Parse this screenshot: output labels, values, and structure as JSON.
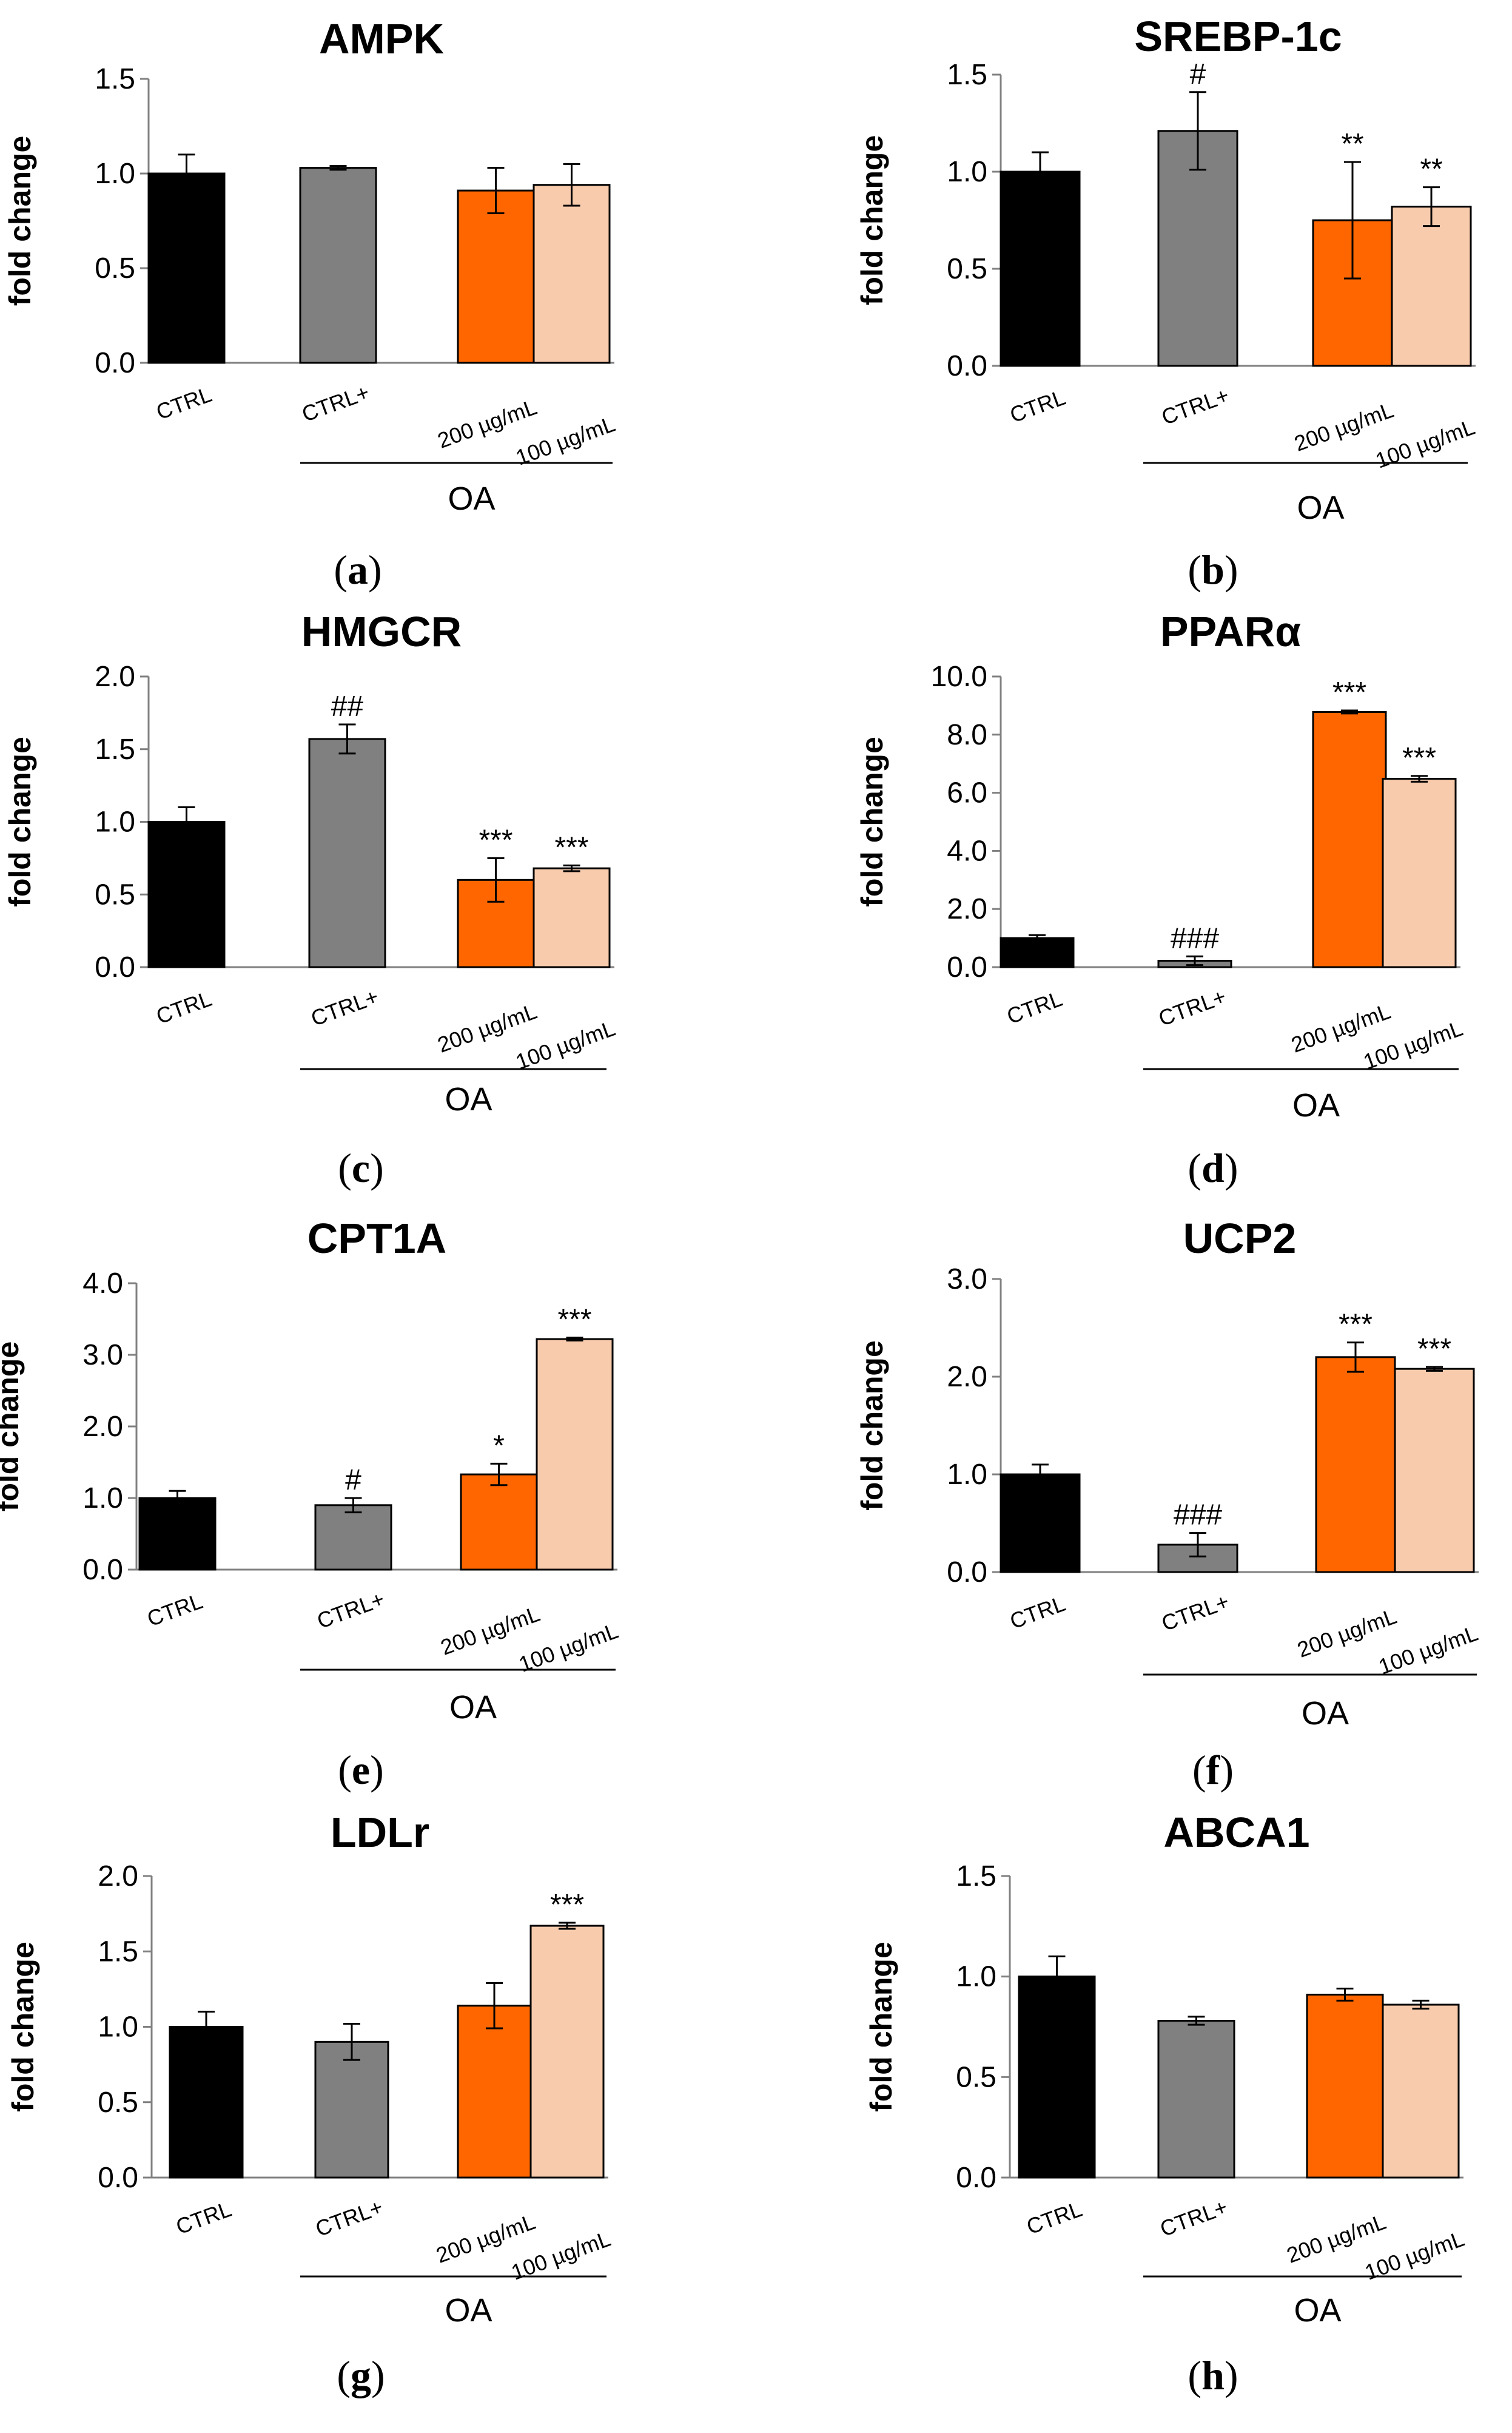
{
  "colors": {
    "CTRL": "#000000",
    "CTRL+": "#808080",
    "200 µg/mL": "#ff6600",
    "100 µg/mL": "#f8cbad"
  },
  "categories": [
    "CTRL",
    "CTRL+",
    "200 µg/mL",
    "100 µg/mL"
  ],
  "chart_data": [
    {
      "type": "bar",
      "panel": "a",
      "title": "AMPK",
      "ylabel": "fold change",
      "ylim": [
        0,
        1.5
      ],
      "yticks": [
        "0.0",
        "0.5",
        "1.0",
        "1.5"
      ],
      "categories": [
        "CTRL",
        "CTRL+",
        "200 µg/mL",
        "100 µg/mL"
      ],
      "values": [
        1.0,
        1.03,
        0.91,
        0.94
      ],
      "errors": [
        0.1,
        0.01,
        0.12,
        0.11
      ],
      "annotations": [
        "",
        "",
        "",
        ""
      ],
      "group_label": "OA"
    },
    {
      "type": "bar",
      "panel": "b",
      "title": "SREBP-1c",
      "ylabel": "fold change",
      "ylim": [
        0,
        1.5
      ],
      "yticks": [
        "0.0",
        "0.5",
        "1.0",
        "1.5"
      ],
      "categories": [
        "CTRL",
        "CTRL+",
        "200 µg/mL",
        "100 µg/mL"
      ],
      "values": [
        1.0,
        1.21,
        0.75,
        0.82
      ],
      "errors": [
        0.1,
        0.2,
        0.3,
        0.1
      ],
      "annotations": [
        "",
        "#",
        "**",
        "**"
      ],
      "group_label": "OA"
    },
    {
      "type": "bar",
      "panel": "c",
      "title": "HMGCR",
      "ylabel": "fold change",
      "ylim": [
        0,
        2.0
      ],
      "yticks": [
        "0.0",
        "0.5",
        "1.0",
        "1.5",
        "2.0"
      ],
      "categories": [
        "CTRL",
        "CTRL+",
        "200 µg/mL",
        "100 µg/mL"
      ],
      "values": [
        1.0,
        1.57,
        0.6,
        0.68
      ],
      "errors": [
        0.1,
        0.1,
        0.15,
        0.02
      ],
      "annotations": [
        "",
        "##",
        "***",
        "***"
      ],
      "group_label": "OA"
    },
    {
      "type": "bar",
      "panel": "d",
      "title": "PPARα",
      "ylabel": "fold change",
      "ylim": [
        0,
        10.0
      ],
      "yticks": [
        "0.0",
        "2.0",
        "4.0",
        "6.0",
        "8.0",
        "10.0"
      ],
      "categories": [
        "CTRL",
        "CTRL+",
        "200 µg/mL",
        "100 µg/mL"
      ],
      "values": [
        1.0,
        0.22,
        8.78,
        6.48
      ],
      "errors": [
        0.1,
        0.15,
        0.05,
        0.1
      ],
      "annotations": [
        "",
        "###",
        "***",
        "***"
      ],
      "group_label": "OA"
    },
    {
      "type": "bar",
      "panel": "e",
      "title": "CPT1A",
      "ylabel": "fold change",
      "ylim": [
        0,
        4.0
      ],
      "yticks": [
        "0.0",
        "1.0",
        "2.0",
        "3.0",
        "4.0"
      ],
      "categories": [
        "CTRL",
        "CTRL+",
        "200 µg/mL",
        "100 µg/mL"
      ],
      "values": [
        1.0,
        0.9,
        1.33,
        3.22
      ],
      "errors": [
        0.1,
        0.1,
        0.15,
        0.02
      ],
      "annotations": [
        "",
        "#",
        "*",
        "***"
      ],
      "group_label": "OA"
    },
    {
      "type": "bar",
      "panel": "f",
      "title": "UCP2",
      "ylabel": "fold change",
      "ylim": [
        0,
        3.0
      ],
      "yticks": [
        "0.0",
        "1.0",
        "2.0",
        "3.0"
      ],
      "categories": [
        "CTRL",
        "CTRL+",
        "200 µg/mL",
        "100 µg/mL"
      ],
      "values": [
        1.0,
        0.28,
        2.2,
        2.08
      ],
      "errors": [
        0.1,
        0.12,
        0.15,
        0.02
      ],
      "annotations": [
        "",
        "###",
        "***",
        "***"
      ],
      "group_label": "OA"
    },
    {
      "type": "bar",
      "panel": "g",
      "title": "LDLr",
      "ylabel": "fold change",
      "ylim": [
        0,
        2.0
      ],
      "yticks": [
        "0.0",
        "0.5",
        "1.0",
        "1.5",
        "2.0"
      ],
      "categories": [
        "CTRL",
        "CTRL+",
        "200 µg/mL",
        "100 µg/mL"
      ],
      "values": [
        1.0,
        0.9,
        1.14,
        1.67
      ],
      "errors": [
        0.1,
        0.12,
        0.15,
        0.02
      ],
      "annotations": [
        "",
        "",
        "",
        "***"
      ],
      "group_label": "OA"
    },
    {
      "type": "bar",
      "panel": "h",
      "title": "ABCA1",
      "ylabel": "fold change",
      "ylim": [
        0,
        1.5
      ],
      "yticks": [
        "0.0",
        "0.5",
        "1.0",
        "1.5"
      ],
      "categories": [
        "CTRL",
        "CTRL+",
        "200 µg/mL",
        "100 µg/mL"
      ],
      "values": [
        1.0,
        0.78,
        0.91,
        0.86
      ],
      "errors": [
        0.1,
        0.02,
        0.03,
        0.02
      ],
      "annotations": [
        "",
        "",
        "",
        ""
      ],
      "group_label": "OA"
    }
  ]
}
